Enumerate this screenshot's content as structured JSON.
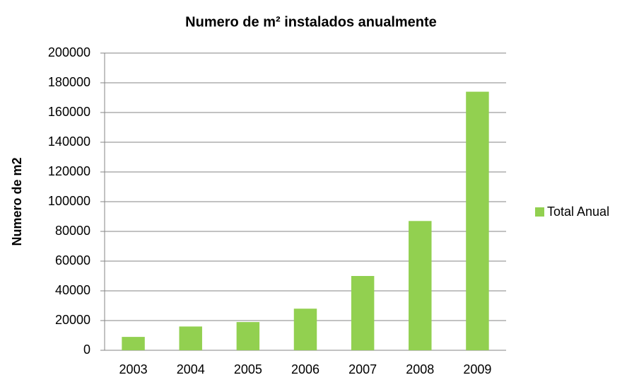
{
  "chart_data": {
    "type": "bar",
    "title": "Numero de m² instalados anualmente",
    "y_label": "Numero de m2",
    "categories": [
      "2003",
      "2004",
      "2005",
      "2006",
      "2007",
      "2008",
      "2009"
    ],
    "series": [
      {
        "name": "Total Anual",
        "color": "#92d050",
        "values": [
          9000,
          16000,
          19000,
          28000,
          50000,
          87000,
          174000
        ]
      }
    ],
    "ylim": [
      0,
      200000
    ],
    "yticks": [
      0,
      20000,
      40000,
      60000,
      80000,
      100000,
      120000,
      140000,
      160000,
      180000,
      200000
    ],
    "grid": true,
    "legend": "right"
  }
}
